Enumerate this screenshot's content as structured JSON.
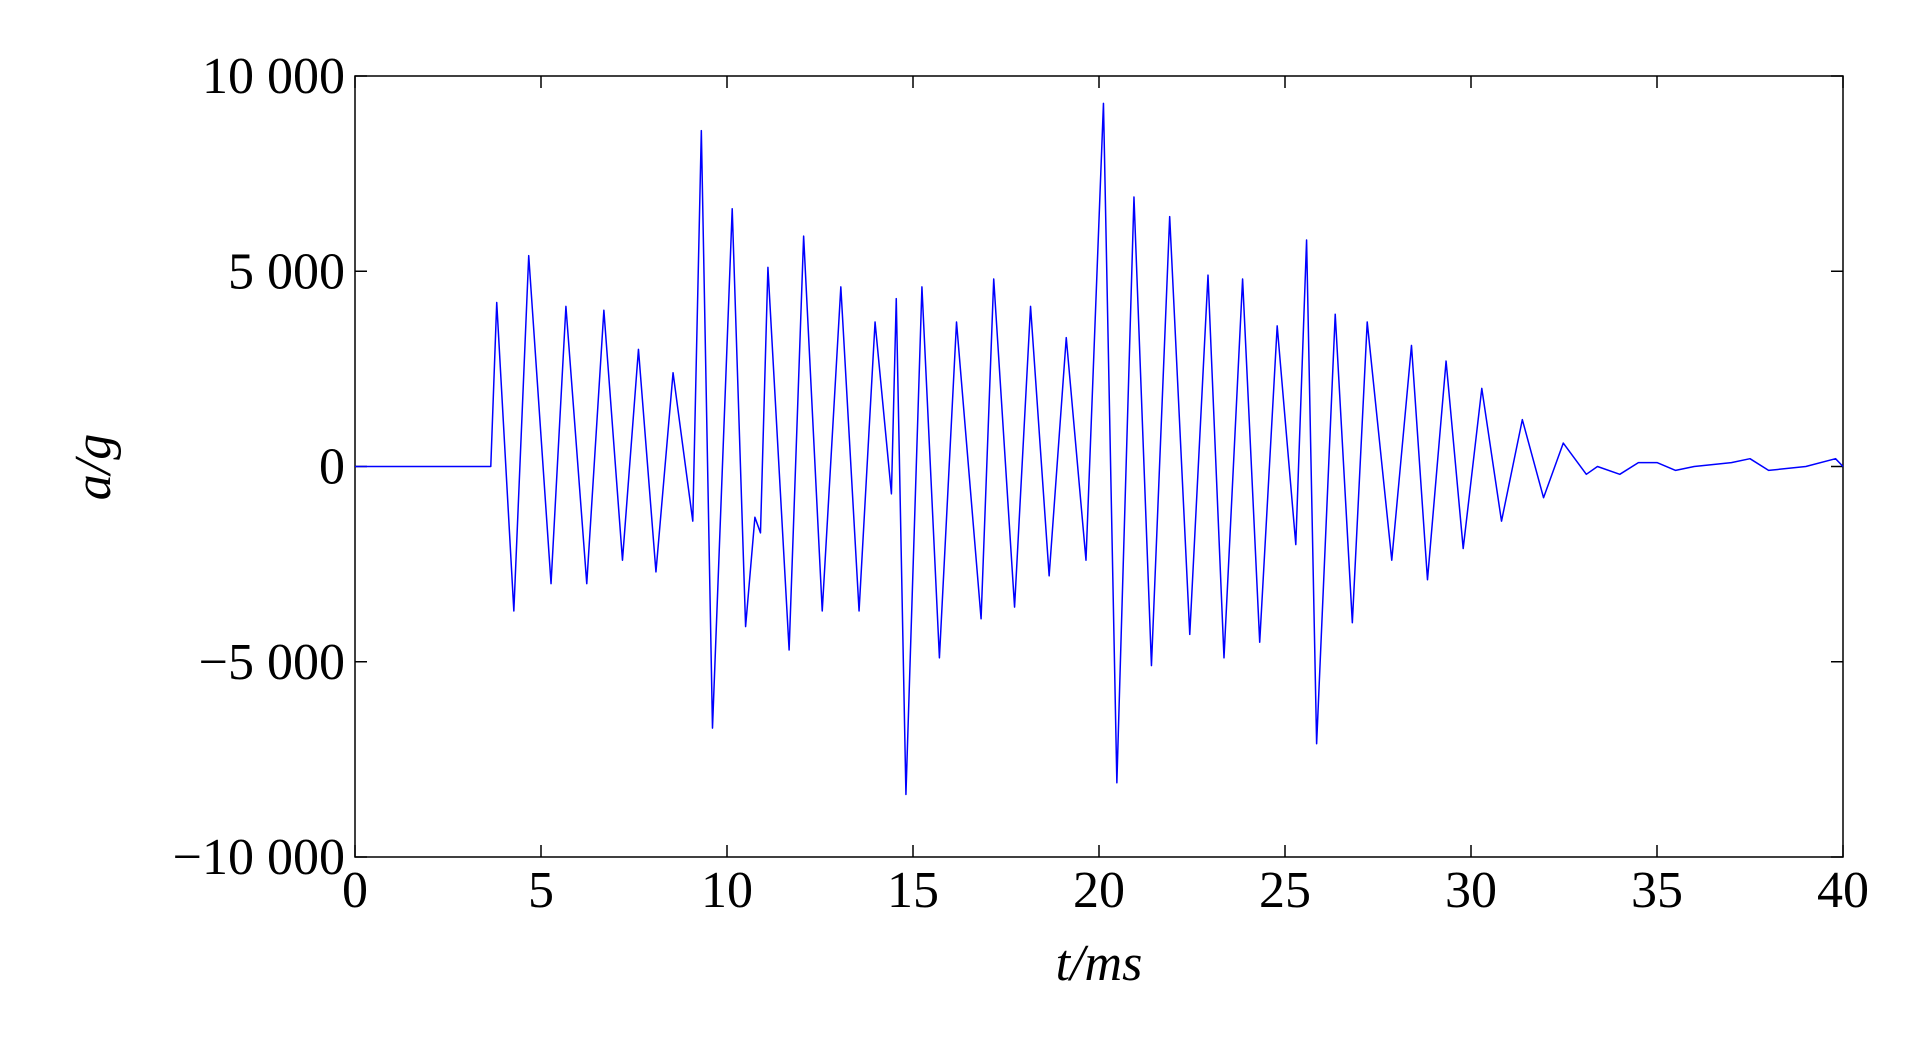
{
  "chart_data": {
    "type": "line",
    "xlabel": "t/ms",
    "ylabel": "a/g",
    "x": [
      0,
      3.65,
      3.81,
      4.27,
      4.67,
      5.27,
      5.67,
      6.23,
      6.69,
      7.19,
      7.62,
      8.09,
      8.55,
      9.08,
      9.31,
      9.61,
      10.14,
      10.5,
      10.75,
      10.9,
      11.1,
      11.67,
      12.06,
      12.56,
      13.06,
      13.55,
      13.98,
      14.42,
      14.55,
      14.81,
      15.24,
      15.71,
      16.17,
      16.83,
      17.17,
      17.73,
      18.16,
      18.66,
      19.12,
      19.65,
      20.12,
      20.48,
      20.94,
      21.41,
      21.9,
      22.44,
      22.93,
      23.36,
      23.86,
      24.32,
      24.79,
      25.29,
      25.58,
      25.85,
      26.35,
      26.81,
      27.21,
      27.87,
      28.4,
      28.83,
      29.33,
      29.79,
      30.29,
      30.82,
      31.38,
      31.95,
      32.48,
      33.1,
      33.4,
      34.0,
      34.5,
      35.0,
      35.5,
      36.0,
      37.0,
      37.5,
      38.0,
      39.0,
      39.8,
      40
    ],
    "series": [
      {
        "name": "a",
        "color": "#0000ff",
        "axis": "y",
        "values": [
          0,
          0,
          4200,
          -3700,
          5400,
          -3000,
          4100,
          -3000,
          4000,
          -2400,
          3000,
          -2700,
          2400,
          -1400,
          8600,
          -6700,
          6600,
          -4100,
          -1300,
          -1700,
          5100,
          -4700,
          5900,
          -3700,
          4600,
          -3700,
          3700,
          -700,
          4300,
          -8400,
          4600,
          -4900,
          3700,
          -3900,
          4800,
          -3600,
          4100,
          -2800,
          3300,
          -2400,
          9300,
          -8100,
          6900,
          -5100,
          6400,
          -4300,
          4900,
          -4900,
          4800,
          -4500,
          3600,
          -2000,
          5800,
          -7100,
          3900,
          -4000,
          3700,
          -2400,
          3100,
          -2900,
          2700,
          -2100,
          2000,
          -1400,
          1200,
          -800,
          600,
          -200,
          0,
          -200,
          100,
          100,
          -100,
          0,
          100,
          200,
          -100,
          0,
          200,
          0
        ]
      }
    ],
    "xlim": [
      0,
      40
    ],
    "xticks": [
      0,
      5,
      10,
      15,
      20,
      25,
      30,
      35,
      40
    ],
    "ylim": [
      -10000,
      10000
    ],
    "yticks": [
      {
        "value": -10000,
        "label": "−10 000"
      },
      {
        "value": -5000,
        "label": "−5 000"
      },
      0,
      {
        "value": 5000,
        "label": "5 000"
      },
      {
        "value": 10000,
        "label": "10 000"
      }
    ],
    "grid": false
  }
}
